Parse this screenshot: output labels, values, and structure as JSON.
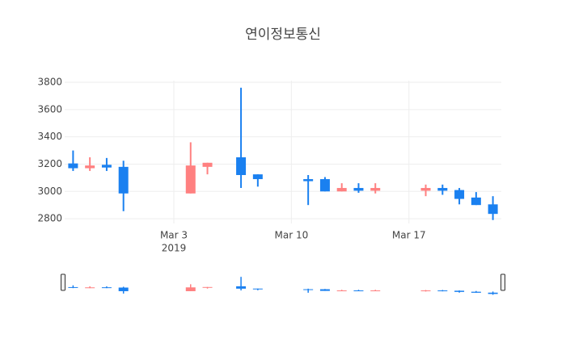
{
  "chart_data": {
    "type": "candlestick",
    "title": "연이정보통신",
    "x": [
      "2019-02-25",
      "2019-02-26",
      "2019-02-27",
      "2019-02-28",
      "2019-03-04",
      "2019-03-05",
      "2019-03-07",
      "2019-03-08",
      "2019-03-11",
      "2019-03-12",
      "2019-03-13",
      "2019-03-14",
      "2019-03-15",
      "2019-03-18",
      "2019-03-19",
      "2019-03-20",
      "2019-03-21",
      "2019-03-22"
    ],
    "open": [
      3205,
      3170,
      3195,
      3180,
      2985,
      3180,
      3250,
      3125,
      3090,
      3090,
      3000,
      3025,
      3005,
      3005,
      3025,
      3010,
      2955,
      2905
    ],
    "high": [
      3300,
      3250,
      3245,
      3225,
      3360,
      3210,
      3760,
      3125,
      3120,
      3105,
      3060,
      3060,
      3060,
      3050,
      3050,
      3025,
      2995,
      2965
    ],
    "low": [
      3150,
      3150,
      3150,
      2855,
      2985,
      3125,
      3025,
      3035,
      2900,
      3000,
      3000,
      2990,
      2985,
      2965,
      2975,
      2905,
      2900,
      2790
    ],
    "close": [
      3170,
      3190,
      3175,
      2985,
      3190,
      3210,
      3120,
      3090,
      3075,
      3000,
      3025,
      3005,
      3025,
      3025,
      3005,
      2945,
      2900,
      2835
    ],
    "increasing_color": "#ff8080",
    "decreasing_color": "#1a80f0",
    "xlim": [
      "2019-02-24 12:00",
      "2019-03-22 12:00"
    ],
    "xticks": [
      {
        "value": "2019-03-03",
        "label": "Mar 3",
        "sublabel": "2019"
      },
      {
        "value": "2019-03-10",
        "label": "Mar 10"
      },
      {
        "value": "2019-03-17",
        "label": "Mar 17"
      }
    ],
    "ylim": [
      2765,
      3812
    ],
    "yticks": [
      2800,
      3000,
      3200,
      3400,
      3600,
      3800
    ],
    "grid": true,
    "rangeslider": true
  }
}
